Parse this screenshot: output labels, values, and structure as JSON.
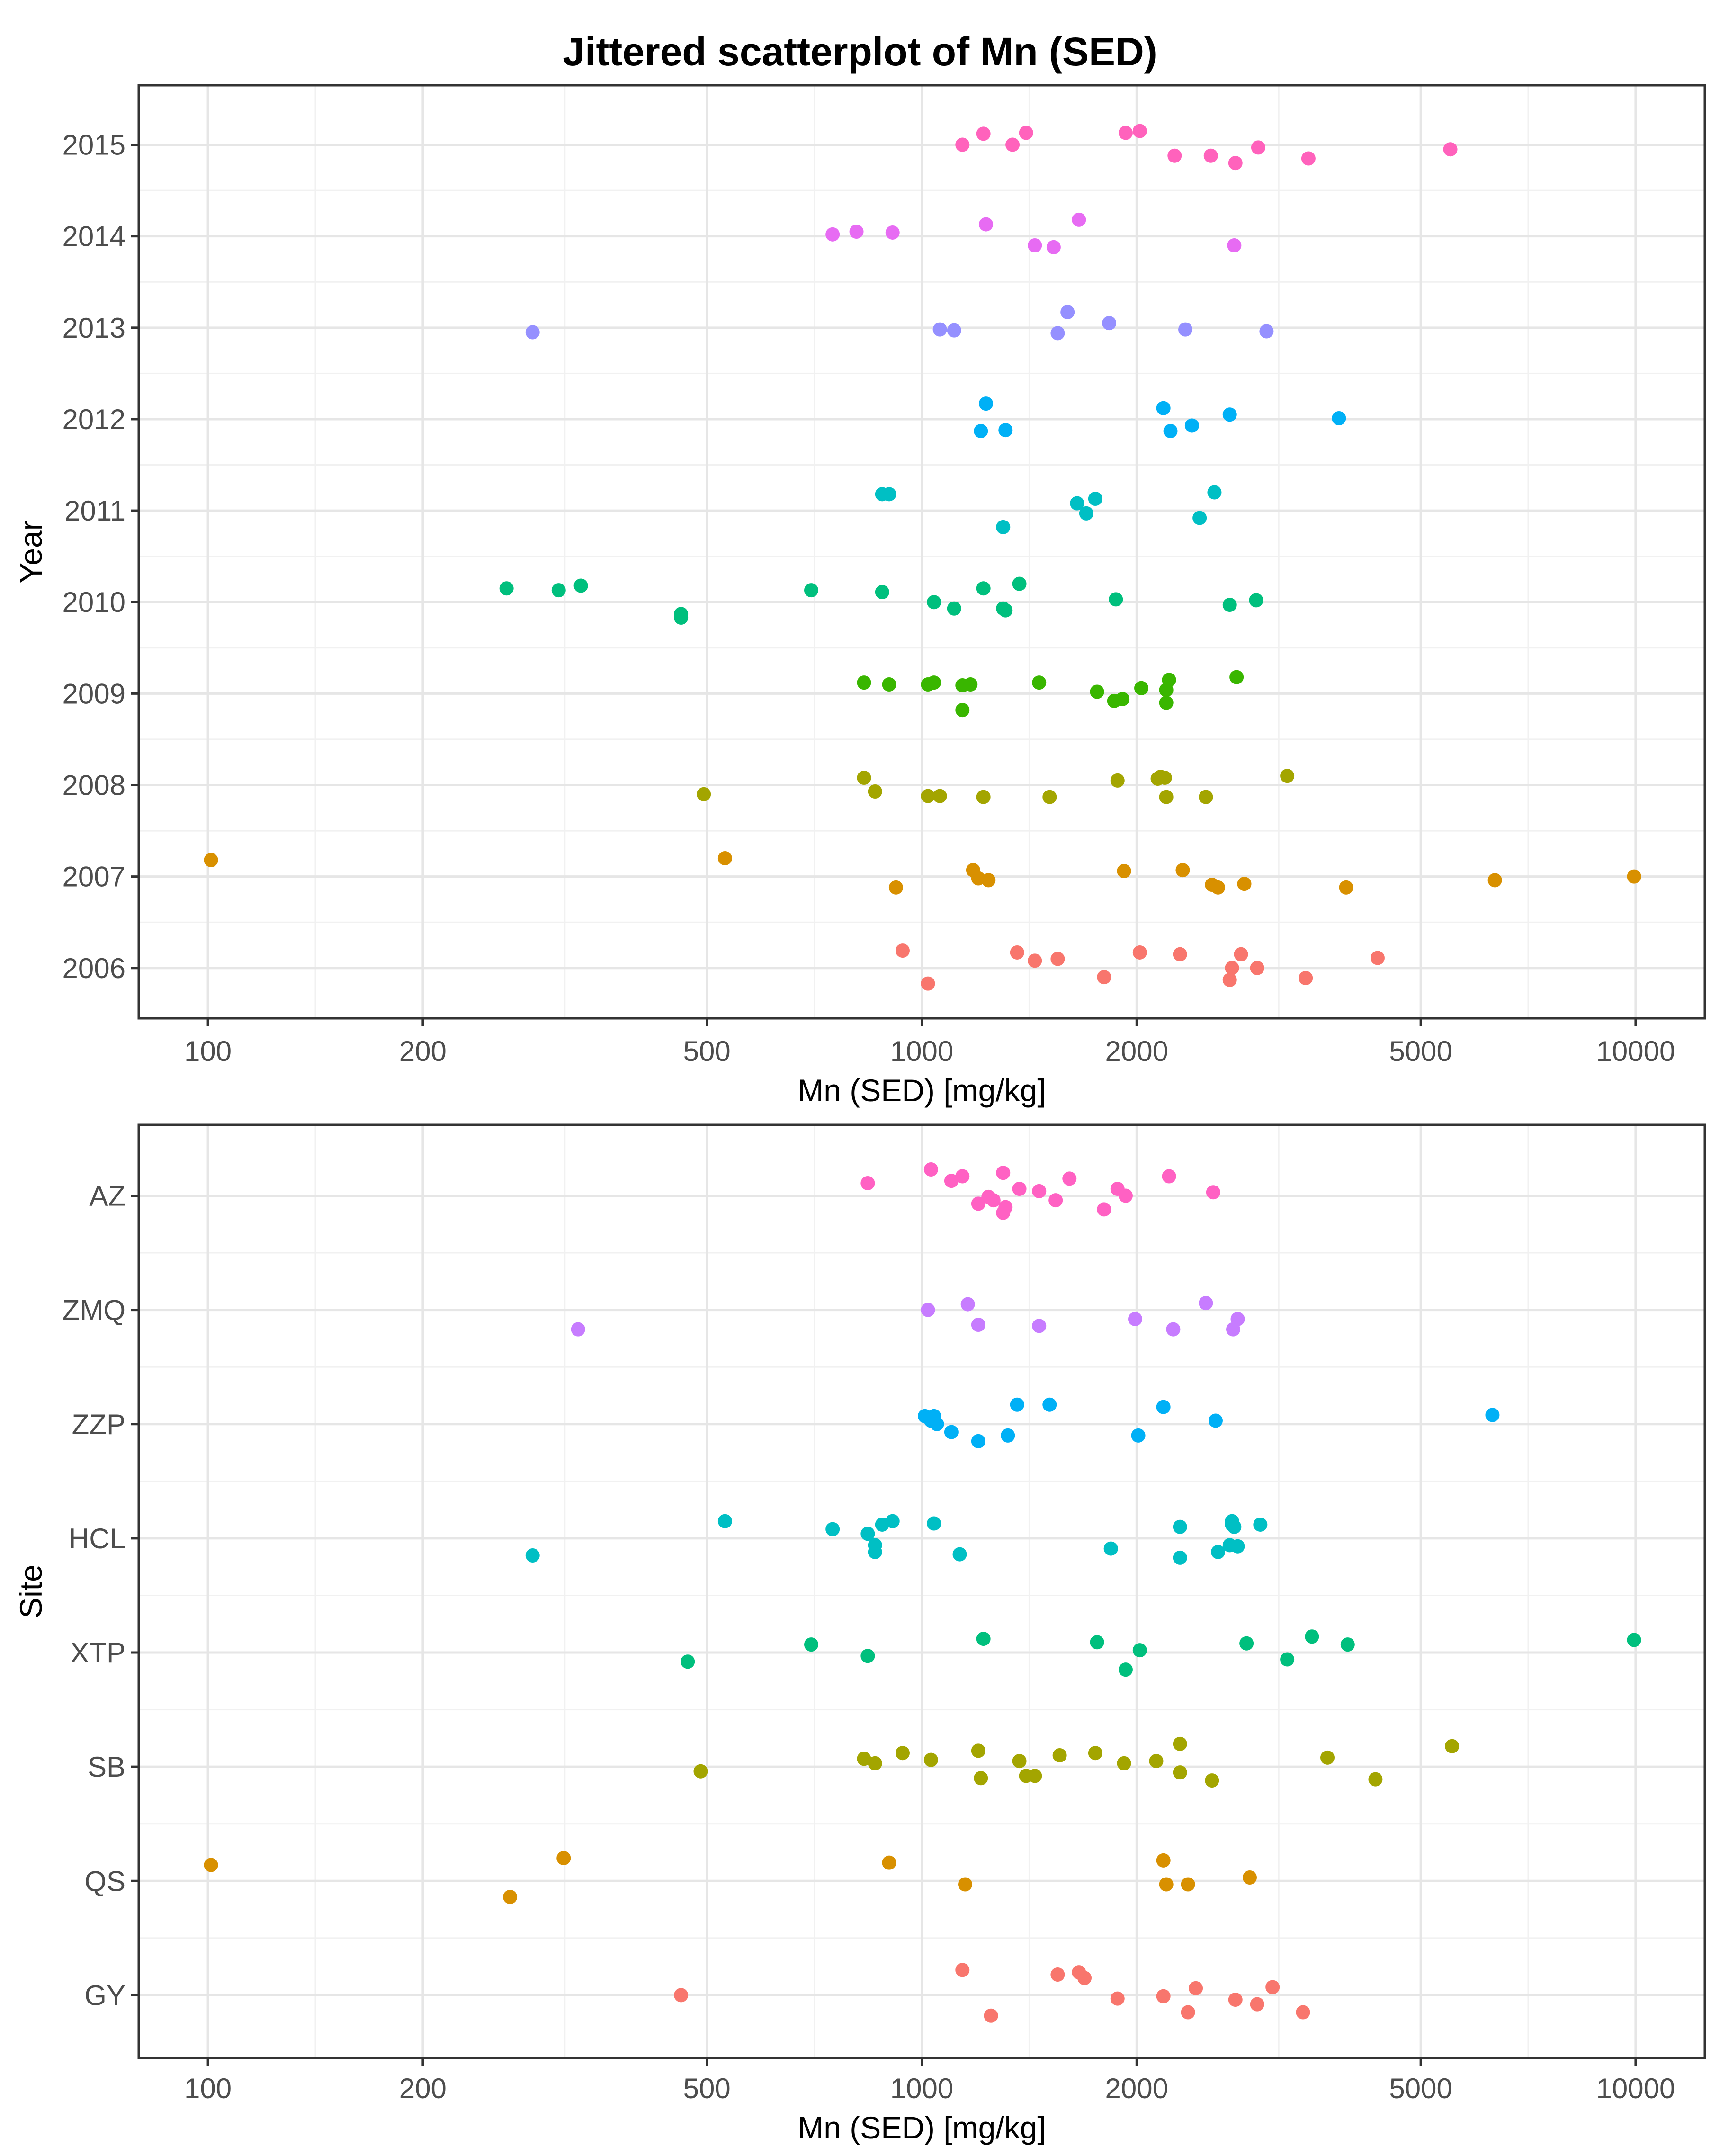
{
  "title": "Jittered scatterplot of Mn (SED)",
  "chart_data": [
    {
      "type": "scatter",
      "name": "by-year",
      "xscale": "log10",
      "xlim": [
        80,
        12500
      ],
      "xticks": [
        100,
        200,
        500,
        1000,
        2000,
        5000,
        10000
      ],
      "xtick_labels": [
        "100",
        "200",
        "500",
        "1000",
        "2000",
        "5000",
        "10000"
      ],
      "xlabel": "Mn (SED) [mg/kg]",
      "ylabel": "Year",
      "ylim": [
        2005.45,
        2015.65
      ],
      "grid": true,
      "legend": "none",
      "categories": [
        "2006",
        "2007",
        "2008",
        "2009",
        "2010",
        "2011",
        "2012",
        "2013",
        "2014",
        "2015"
      ],
      "series": [
        {
          "name": "2006",
          "color": "#F8766D",
          "points": [
            [
              940,
              2006.19
            ],
            [
              1020,
              2005.83
            ],
            [
              1360,
              2006.17
            ],
            [
              1440,
              2006.08
            ],
            [
              1550,
              2006.1
            ],
            [
              1800,
              2005.9
            ],
            [
              2020,
              2006.17
            ],
            [
              2300,
              2006.15
            ],
            [
              2800,
              2006.15
            ],
            [
              2720,
              2006.0
            ],
            [
              2700,
              2005.87
            ],
            [
              2950,
              2006.0
            ],
            [
              3450,
              2005.89
            ],
            [
              4350,
              2006.11
            ]
          ]
        },
        {
          "name": "2007",
          "color": "#D89000",
          "points": [
            [
              101,
              2007.18
            ],
            [
              530,
              2007.2
            ],
            [
              920,
              2006.88
            ],
            [
              1180,
              2007.07
            ],
            [
              1200,
              2006.98
            ],
            [
              1240,
              2006.96
            ],
            [
              1920,
              2007.06
            ],
            [
              2320,
              2007.07
            ],
            [
              2550,
              2006.91
            ],
            [
              2600,
              2006.88
            ],
            [
              2830,
              2006.92
            ],
            [
              3930,
              2006.88
            ],
            [
              6350,
              2006.96
            ],
            [
              9950,
              2007.0
            ]
          ]
        },
        {
          "name": "2008",
          "color": "#A3A500",
          "points": [
            [
              495,
              2007.9
            ],
            [
              830,
              2008.08
            ],
            [
              860,
              2007.93
            ],
            [
              1020,
              2007.88
            ],
            [
              1060,
              2007.88
            ],
            [
              1220,
              2007.87
            ],
            [
              1510,
              2007.87
            ],
            [
              1880,
              2008.05
            ],
            [
              2140,
              2008.07
            ],
            [
              2160,
              2008.09
            ],
            [
              2190,
              2008.08
            ],
            [
              2200,
              2007.87
            ],
            [
              2500,
              2007.87
            ],
            [
              3250,
              2008.1
            ]
          ]
        },
        {
          "name": "2009",
          "color": "#39B600",
          "points": [
            [
              830,
              2009.12
            ],
            [
              900,
              2009.1
            ],
            [
              1020,
              2009.1
            ],
            [
              1040,
              2009.12
            ],
            [
              1140,
              2009.09
            ],
            [
              1170,
              2009.1
            ],
            [
              1140,
              2008.82
            ],
            [
              1460,
              2009.12
            ],
            [
              1760,
              2009.02
            ],
            [
              1860,
              2008.92
            ],
            [
              1910,
              2008.94
            ],
            [
              2030,
              2009.06
            ],
            [
              2200,
              2009.04
            ],
            [
              2200,
              2008.9
            ],
            [
              2220,
              2009.15
            ],
            [
              2760,
              2009.18
            ]
          ]
        },
        {
          "name": "2010",
          "color": "#00BF7D",
          "points": [
            [
              262,
              2010.15
            ],
            [
              310,
              2010.13
            ],
            [
              333,
              2010.18
            ],
            [
              460,
              2009.83
            ],
            [
              460,
              2009.87
            ],
            [
              700,
              2010.13
            ],
            [
              880,
              2010.11
            ],
            [
              1040,
              2010.0
            ],
            [
              1110,
              2009.93
            ],
            [
              1220,
              2010.15
            ],
            [
              1300,
              2009.93
            ],
            [
              1370,
              2010.2
            ],
            [
              1310,
              2009.91
            ],
            [
              1870,
              2010.03
            ],
            [
              2700,
              2009.97
            ],
            [
              2940,
              2010.02
            ]
          ]
        },
        {
          "name": "2011",
          "color": "#00BFC4",
          "points": [
            [
              880,
              2011.18
            ],
            [
              900,
              2011.18
            ],
            [
              1300,
              2010.82
            ],
            [
              1650,
              2011.08
            ],
            [
              1700,
              2010.97
            ],
            [
              1750,
              2011.13
            ],
            [
              2570,
              2011.2
            ],
            [
              2450,
              2010.92
            ]
          ]
        },
        {
          "name": "2012",
          "color": "#00B0F6",
          "points": [
            [
              1230,
              2012.17
            ],
            [
              1210,
              2011.87
            ],
            [
              1310,
              2011.88
            ],
            [
              2180,
              2012.12
            ],
            [
              2230,
              2011.87
            ],
            [
              2390,
              2011.93
            ],
            [
              2700,
              2012.05
            ],
            [
              3840,
              2012.01
            ]
          ]
        },
        {
          "name": "2013",
          "color": "#9590FF",
          "points": [
            [
              285,
              2012.95
            ],
            [
              1060,
              2012.98
            ],
            [
              1110,
              2012.97
            ],
            [
              1600,
              2013.17
            ],
            [
              1550,
              2012.94
            ],
            [
              1830,
              2013.05
            ],
            [
              2340,
              2012.98
            ],
            [
              3040,
              2012.96
            ]
          ]
        },
        {
          "name": "2014",
          "color": "#E76BF3",
          "points": [
            [
              750,
              2014.02
            ],
            [
              810,
              2014.05
            ],
            [
              910,
              2014.04
            ],
            [
              1230,
              2014.13
            ],
            [
              1440,
              2013.9
            ],
            [
              1530,
              2013.88
            ],
            [
              1660,
              2014.18
            ],
            [
              2740,
              2013.9
            ]
          ]
        },
        {
          "name": "2015",
          "color": "#FF62BC",
          "points": [
            [
              1140,
              2015.0
            ],
            [
              1220,
              2015.12
            ],
            [
              1340,
              2015.0
            ],
            [
              1400,
              2015.13
            ],
            [
              1930,
              2015.13
            ],
            [
              2020,
              2015.15
            ],
            [
              2260,
              2014.88
            ],
            [
              2540,
              2014.88
            ],
            [
              2750,
              2014.8
            ],
            [
              2960,
              2014.97
            ],
            [
              3480,
              2014.85
            ],
            [
              5500,
              2014.95
            ]
          ]
        }
      ]
    },
    {
      "type": "scatter",
      "name": "by-site",
      "xscale": "log10",
      "xlim": [
        80,
        12500
      ],
      "xticks": [
        100,
        200,
        500,
        1000,
        2000,
        5000,
        10000
      ],
      "xtick_labels": [
        "100",
        "200",
        "500",
        "1000",
        "2000",
        "5000",
        "10000"
      ],
      "xlabel": "Mn (SED) [mg/kg]",
      "ylabel": "Site",
      "ylim": [
        0.45,
        8.62
      ],
      "grid": true,
      "legend": "none",
      "categories": [
        "GY",
        "QS",
        "SB",
        "XTP",
        "HCL",
        "ZZP",
        "ZMQ",
        "AZ"
      ],
      "series": [
        {
          "name": "GY",
          "color": "#F8766D",
          "points": [
            [
              460,
              1.0
            ],
            [
              1140,
              1.22
            ],
            [
              1250,
              0.82
            ],
            [
              1550,
              1.18
            ],
            [
              1660,
              1.2
            ],
            [
              1690,
              1.15
            ],
            [
              1880,
              0.97
            ],
            [
              2180,
              0.99
            ],
            [
              2360,
              0.85
            ],
            [
              2420,
              1.06
            ],
            [
              2750,
              0.96
            ],
            [
              2950,
              0.92
            ],
            [
              3100,
              1.07
            ],
            [
              3420,
              0.85
            ]
          ]
        },
        {
          "name": "QS",
          "color": "#D89000",
          "points": [
            [
              101,
              2.14
            ],
            [
              265,
              1.86
            ],
            [
              315,
              2.2
            ],
            [
              900,
              2.16
            ],
            [
              1150,
              1.97
            ],
            [
              2180,
              2.18
            ],
            [
              2200,
              1.97
            ],
            [
              2360,
              1.97
            ],
            [
              2880,
              2.03
            ]
          ]
        },
        {
          "name": "SB",
          "color": "#A3A500",
          "points": [
            [
              490,
              2.96
            ],
            [
              830,
              3.07
            ],
            [
              860,
              3.03
            ],
            [
              940,
              3.12
            ],
            [
              1030,
              3.06
            ],
            [
              1200,
              3.14
            ],
            [
              1210,
              2.9
            ],
            [
              1370,
              3.05
            ],
            [
              1400,
              2.92
            ],
            [
              1440,
              2.92
            ],
            [
              1560,
              3.1
            ],
            [
              1750,
              3.12
            ],
            [
              1920,
              3.03
            ],
            [
              2130,
              3.05
            ],
            [
              2300,
              3.2
            ],
            [
              2300,
              2.95
            ],
            [
              2550,
              2.88
            ],
            [
              3700,
              3.08
            ],
            [
              4320,
              2.89
            ],
            [
              5530,
              3.18
            ]
          ]
        },
        {
          "name": "XTP",
          "color": "#00BF7D",
          "points": [
            [
              470,
              3.92
            ],
            [
              700,
              4.07
            ],
            [
              840,
              3.97
            ],
            [
              1220,
              4.12
            ],
            [
              1760,
              4.09
            ],
            [
              1930,
              3.85
            ],
            [
              2020,
              4.02
            ],
            [
              2850,
              4.08
            ],
            [
              3250,
              3.94
            ],
            [
              3520,
              4.14
            ],
            [
              3950,
              4.07
            ],
            [
              9950,
              4.11
            ]
          ]
        },
        {
          "name": "HCL",
          "color": "#00BFC4",
          "points": [
            [
              285,
              4.85
            ],
            [
              530,
              5.15
            ],
            [
              750,
              5.08
            ],
            [
              840,
              5.04
            ],
            [
              860,
              4.94
            ],
            [
              860,
              4.88
            ],
            [
              880,
              5.12
            ],
            [
              910,
              5.15
            ],
            [
              1040,
              5.13
            ],
            [
              1130,
              4.86
            ],
            [
              1840,
              4.91
            ],
            [
              2300,
              5.1
            ],
            [
              2300,
              4.83
            ],
            [
              2600,
              4.88
            ],
            [
              2720,
              5.12
            ],
            [
              2720,
              5.15
            ],
            [
              2740,
              5.1
            ],
            [
              2770,
              4.93
            ],
            [
              2700,
              4.94
            ],
            [
              2980,
              5.12
            ]
          ]
        },
        {
          "name": "ZZP",
          "color": "#00B0F6",
          "points": [
            [
              1010,
              6.07
            ],
            [
              1030,
              6.03
            ],
            [
              1040,
              6.07
            ],
            [
              1050,
              6.0
            ],
            [
              1100,
              5.93
            ],
            [
              1200,
              5.85
            ],
            [
              1320,
              5.9
            ],
            [
              1360,
              6.17
            ],
            [
              1510,
              6.17
            ],
            [
              2010,
              5.9
            ],
            [
              2180,
              6.15
            ],
            [
              2580,
              6.03
            ],
            [
              6300,
              6.08
            ]
          ]
        },
        {
          "name": "ZMQ",
          "color": "#C77CFF",
          "points": [
            [
              330,
              6.83
            ],
            [
              1020,
              7.0
            ],
            [
              1160,
              7.05
            ],
            [
              1200,
              6.87
            ],
            [
              1460,
              6.86
            ],
            [
              1990,
              6.92
            ],
            [
              2250,
              6.83
            ],
            [
              2500,
              7.06
            ],
            [
              2730,
              6.83
            ],
            [
              2770,
              6.92
            ]
          ]
        },
        {
          "name": "AZ",
          "color": "#FF61C3",
          "points": [
            [
              840,
              8.11
            ],
            [
              1030,
              8.23
            ],
            [
              1100,
              8.13
            ],
            [
              1140,
              8.17
            ],
            [
              1200,
              7.93
            ],
            [
              1240,
              7.99
            ],
            [
              1260,
              7.96
            ],
            [
              1300,
              8.2
            ],
            [
              1300,
              7.85
            ],
            [
              1310,
              7.9
            ],
            [
              1370,
              8.06
            ],
            [
              1460,
              8.04
            ],
            [
              1540,
              7.96
            ],
            [
              1610,
              8.15
            ],
            [
              1800,
              7.88
            ],
            [
              1880,
              8.06
            ],
            [
              1930,
              8.0
            ],
            [
              2220,
              8.17
            ],
            [
              2560,
              8.03
            ]
          ]
        }
      ]
    }
  ]
}
